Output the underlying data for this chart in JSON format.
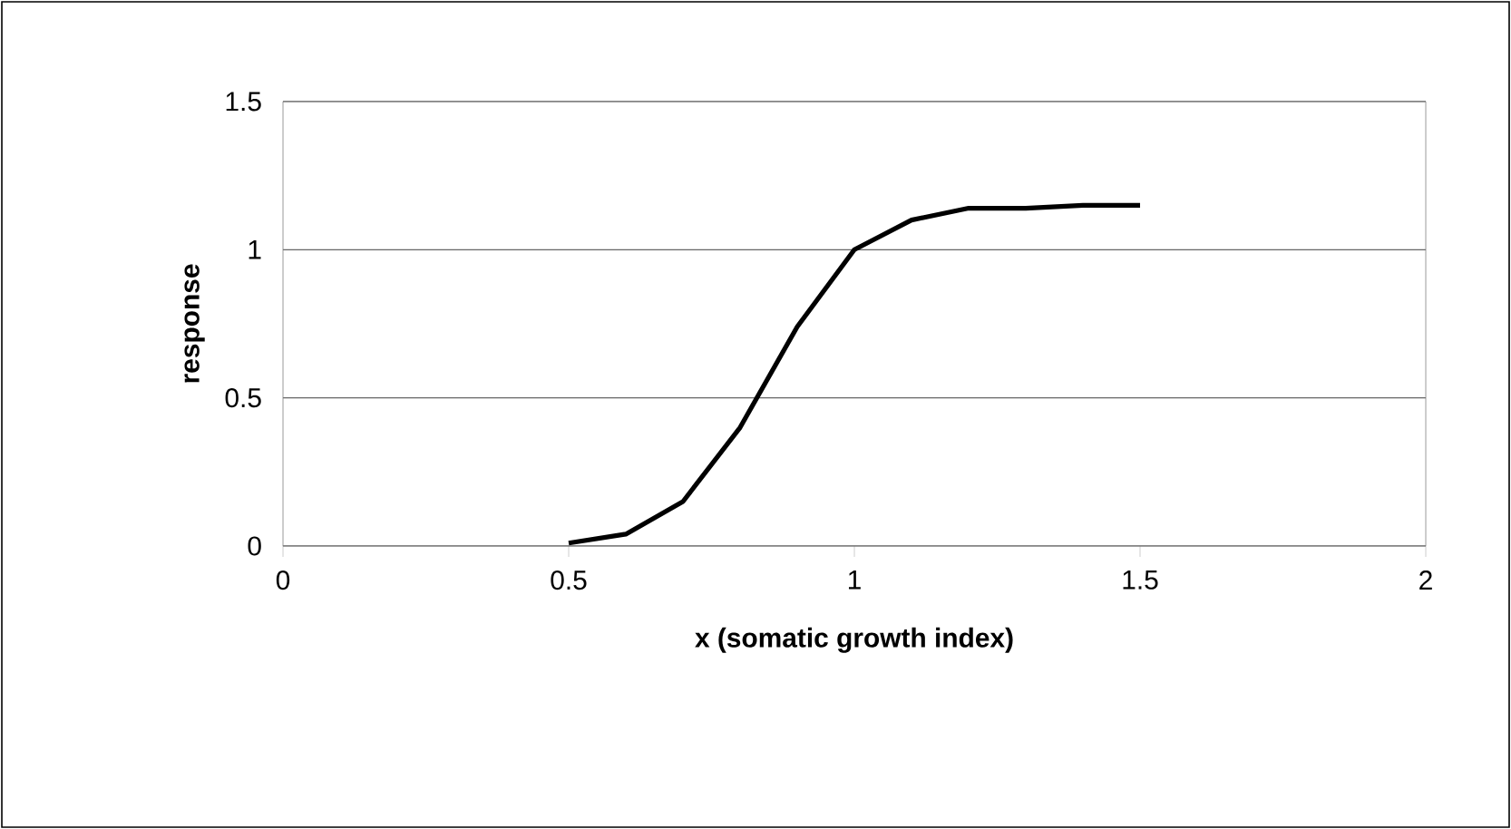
{
  "chart_data": {
    "type": "line",
    "xlabel": "x (somatic growth index)",
    "ylabel": "response",
    "x": [
      0.5,
      0.6,
      0.7,
      0.8,
      0.9,
      1.0,
      1.1,
      1.2,
      1.3,
      1.4,
      1.5
    ],
    "series": [
      {
        "color": "#000000",
        "values": [
          0.01,
          0.04,
          0.15,
          0.4,
          0.74,
          1.0,
          1.1,
          1.14,
          1.14,
          1.15,
          1.15
        ]
      }
    ],
    "xlim": [
      0,
      2
    ],
    "xticks": [
      0,
      0.5,
      1,
      1.5,
      2
    ],
    "ylim": [
      0,
      1.5
    ],
    "yticks": [
      0,
      0.5,
      1,
      1.5
    ],
    "grid": "y",
    "marker": "none",
    "line_style": "solid"
  }
}
